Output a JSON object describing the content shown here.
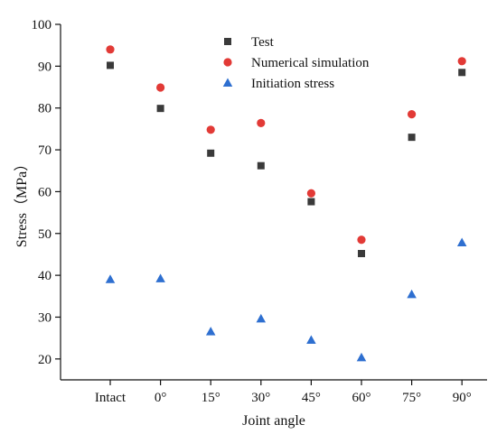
{
  "chart_data": {
    "type": "scatter",
    "categories": [
      "Intact",
      "0°",
      "15°",
      "30°",
      "45°",
      "60°",
      "75°",
      "90°"
    ],
    "series": [
      {
        "name": "Test",
        "marker": "square",
        "color": "#3a3a3a",
        "values": [
          90.2,
          79.9,
          69.2,
          66.2,
          57.6,
          45.2,
          73.0,
          88.5
        ]
      },
      {
        "name": "Numerical simulation",
        "marker": "circle",
        "color": "#e23a36",
        "values": [
          94.0,
          84.9,
          74.8,
          76.4,
          59.6,
          48.5,
          78.5,
          91.2
        ]
      },
      {
        "name": "Initiation stress",
        "marker": "triangle",
        "color": "#2e6fd0",
        "values": [
          39.0,
          39.2,
          26.5,
          29.6,
          24.5,
          20.3,
          35.4,
          47.8
        ]
      }
    ],
    "xlabel": "Joint angle",
    "ylabel": "Stress（MPa）",
    "ylim": [
      15,
      100
    ],
    "yticks": [
      20,
      30,
      40,
      50,
      60,
      70,
      80,
      90,
      100
    ],
    "legend_position": "top-center",
    "grid": false
  }
}
